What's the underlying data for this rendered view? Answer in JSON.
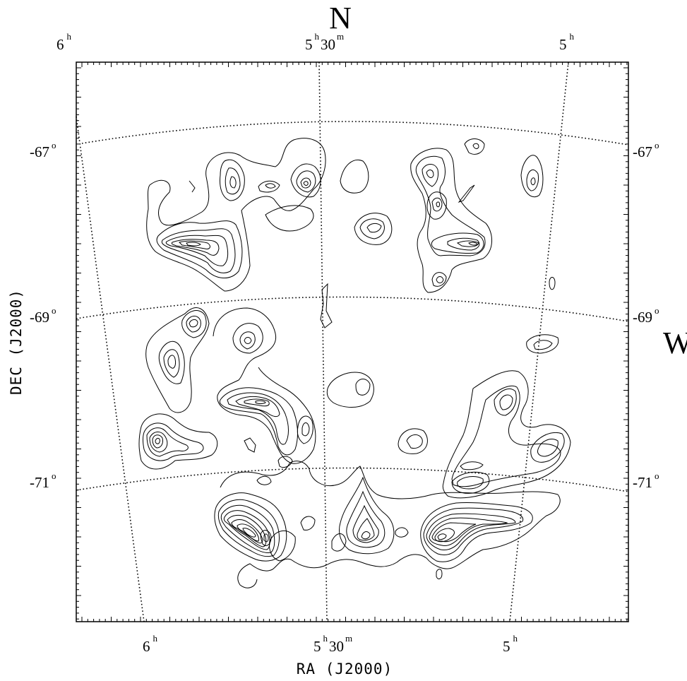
{
  "chart_data": {
    "type": "contour",
    "xlabel": "RA (J2000)",
    "ylabel": "DEC (J2000)",
    "compass": {
      "north": "N",
      "west": "W"
    },
    "top_ra_ticks": [
      {
        "main": "6",
        "unit": "h",
        "minutes": "",
        "minutes_unit": ""
      },
      {
        "main": "5",
        "unit": "h",
        "minutes": "30",
        "minutes_unit": "m"
      },
      {
        "main": "5",
        "unit": "h",
        "minutes": "",
        "minutes_unit": ""
      }
    ],
    "bottom_ra_ticks": [
      {
        "main": "6",
        "unit": "h",
        "minutes": "",
        "minutes_unit": ""
      },
      {
        "main": "5",
        "unit": "h",
        "minutes": "30",
        "minutes_unit": "m"
      },
      {
        "main": "5",
        "unit": "h",
        "minutes": "",
        "minutes_unit": ""
      }
    ],
    "dec_ticks": [
      {
        "value": "-67",
        "unit": "o"
      },
      {
        "value": "-69",
        "unit": "o"
      },
      {
        "value": "-71",
        "unit": "o"
      }
    ],
    "grid": true,
    "grid_style": "dotted"
  }
}
